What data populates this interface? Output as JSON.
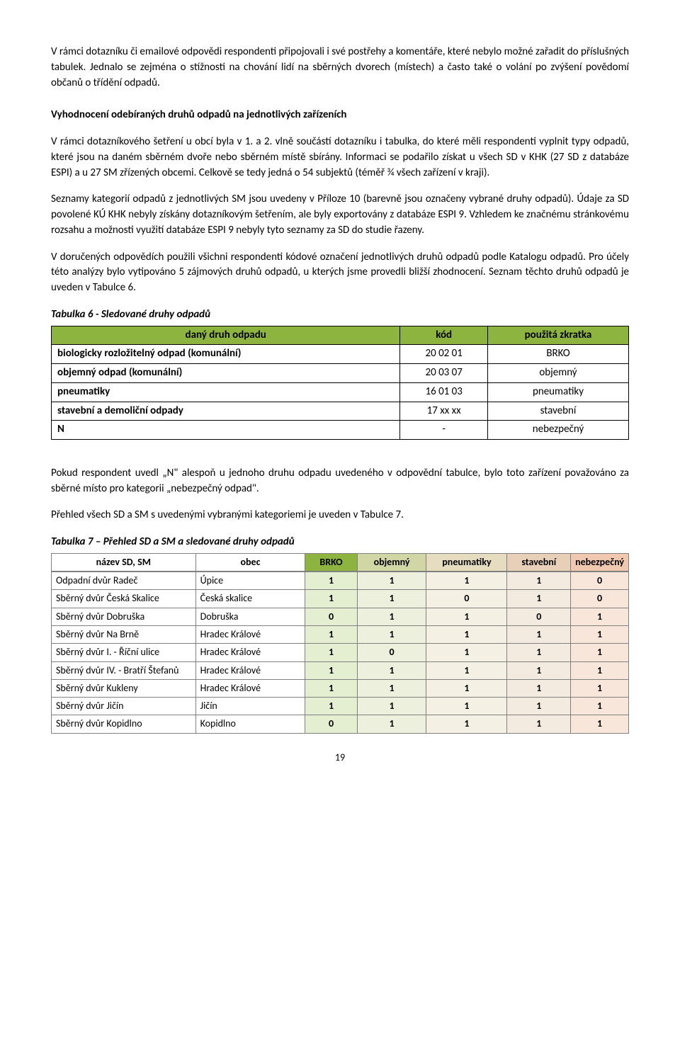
{
  "para1": "V rámci dotazníku či emailové odpovědi respondenti připojovali i své postřehy a komentáře, které nebylo možné zařadit do příslušných tabulek. Jednalo se zejména o stížnosti na chování lidí na sběrných dvorech (místech) a často také o volání po zvýšení povědomí občanů o třídění odpadů.",
  "heading1": "Vyhodnocení odebíraných druhů odpadů na jednotlivých zařízeních",
  "para2": "V rámci dotazníkového šetření u obcí byla v 1. a 2. vlně součástí dotazníku i tabulka, do které měli respondenti vyplnit typy odpadů, které jsou na daném sběrném dvoře nebo sběrném místě sbírány. Informaci se podařilo získat u všech SD v KHK (27 SD z databáze ESPI) a u 27 SM zřízených obcemi. Celkově se tedy jedná o 54 subjektů (téměř ¾ všech zařízení v kraji).",
  "para3": "Seznamy kategorií odpadů z jednotlivých SM jsou uvedeny v Příloze 10 (barevně jsou označeny vybrané druhy odpadů). Údaje za SD povolené KÚ KHK nebyly získány dotazníkovým šetřením, ale byly exportovány z databáze ESPI 9. Vzhledem ke značnému stránkovému rozsahu a možnosti využití databáze ESPI 9 nebyly tyto seznamy za SD do studie řazeny.",
  "para4": "V doručených odpovědích použili všichni respondenti kódové označení jednotlivých druhů odpadů podle Katalogu odpadů.  Pro účely této analýzy bylo vytipováno 5 zájmových druhů odpadů, u kterých jsme provedli bližší zhodnocení. Seznam těchto druhů odpadů je uveden v Tabulce 6.",
  "table6": {
    "title": "Tabulka 6 - Sledované druhy odpadů",
    "headers": [
      "daný druh odpadu",
      "kód",
      "použitá zkratka"
    ],
    "rows": [
      [
        "biologicky rozložitelný odpad (komunální)",
        "20 02 01",
        "BRKO"
      ],
      [
        "objemný odpad (komunální)",
        "20 03 07",
        "objemný"
      ],
      [
        "pneumatiky",
        "16 01 03",
        "pneumatiky"
      ],
      [
        "stavební a demoliční odpady",
        "17 xx xx",
        "stavební"
      ],
      [
        "N",
        "-",
        "nebezpečný"
      ]
    ],
    "header_bg": "#8db43e"
  },
  "para5": "Pokud respondent uvedl „N\" alespoň u jednoho druhu odpadu uvedeného v odpovědní tabulce, bylo toto zařízení považováno za sběrné místo pro kategorii „nebezpečný odpad\".",
  "para6": "Přehled všech SD a SM s uvedenými vybranými kategoriemi je uveden v Tabulce 7.",
  "table7": {
    "title": "Tabulka 7 – Přehled SD a SM a sledované druhy odpadů",
    "headers": [
      "název SD, SM",
      "obec",
      "BRKO",
      "objemný",
      "pneumatiky",
      "stavební",
      "nebezpečný"
    ],
    "header_colors": {
      "name": "#ffffff",
      "obec": "#ffffff",
      "brko": "#8db43e",
      "objemny": "#d0d6a4",
      "pneumatiky": "#e6dcc0",
      "stavebni": "#e8d0b8",
      "nebezpecny": "#f0c8b0"
    },
    "body_colors": {
      "brko": "#e4eed0",
      "objemny": "#edf0dc",
      "pneumatiky": "#f4f0e3",
      "stavebni": "#f4ebe0",
      "nebezpecny": "#f8e6da"
    },
    "rows": [
      {
        "name": "Odpadní dvůr Radeč",
        "obec": "Úpice",
        "v": [
          "1",
          "1",
          "1",
          "1",
          "0"
        ]
      },
      {
        "name": "Sběrný dvůr Česká Skalice",
        "obec": "Česká skalice",
        "v": [
          "1",
          "1",
          "0",
          "1",
          "0"
        ]
      },
      {
        "name": "Sběrný dvůr Dobruška",
        "obec": "Dobruška",
        "v": [
          "0",
          "1",
          "1",
          "0",
          "1"
        ]
      },
      {
        "name": "Sběrný dvůr Na Brně",
        "obec": "Hradec Králové",
        "v": [
          "1",
          "1",
          "1",
          "1",
          "1"
        ]
      },
      {
        "name": "Sběrný dvůr I. - Říční ulice",
        "obec": "Hradec Králové",
        "v": [
          "1",
          "0",
          "1",
          "1",
          "1"
        ]
      },
      {
        "name": "Sběrný dvůr IV. - Bratří Štefanů",
        "obec": "Hradec Králové",
        "v": [
          "1",
          "1",
          "1",
          "1",
          "1"
        ]
      },
      {
        "name": "Sběrný dvůr Kukleny",
        "obec": "Hradec Králové",
        "v": [
          "1",
          "1",
          "1",
          "1",
          "1"
        ]
      },
      {
        "name": "Sběrný dvůr Jičín",
        "obec": "Jičín",
        "v": [
          "1",
          "1",
          "1",
          "1",
          "1"
        ]
      },
      {
        "name": "Sběrný dvůr Kopidlno",
        "obec": "Kopidlno",
        "v": [
          "0",
          "1",
          "1",
          "1",
          "1"
        ]
      }
    ]
  },
  "pagenum": "19"
}
